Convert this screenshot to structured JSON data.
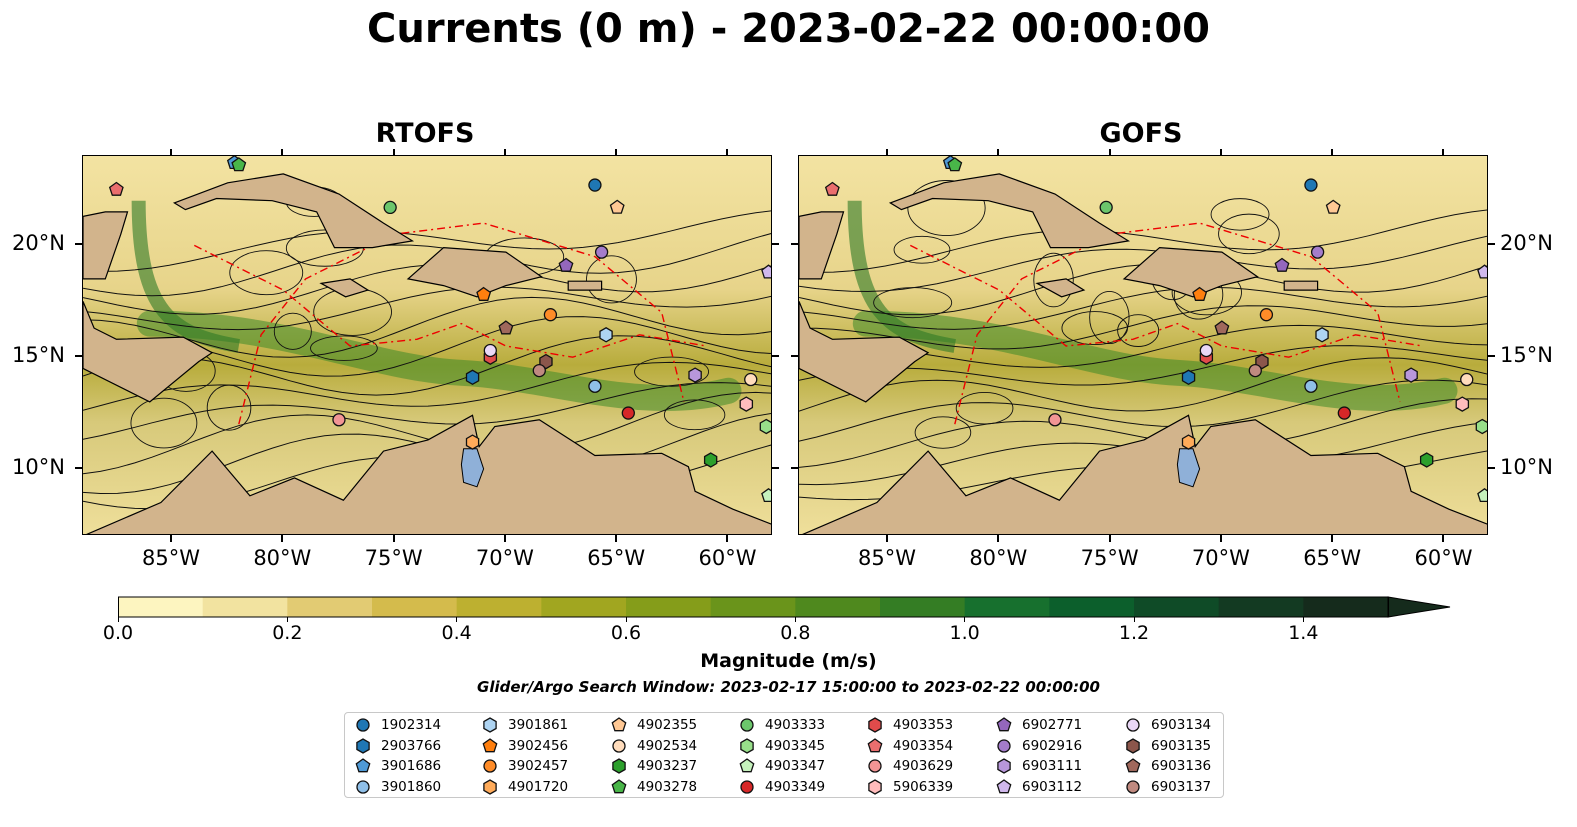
{
  "title": "Currents (0 m) - 2023-02-22 00:00:00",
  "panels": [
    {
      "title": "RTOFS"
    },
    {
      "title": "GOFS"
    }
  ],
  "lon_labels": [
    "85°W",
    "80°W",
    "75°W",
    "70°W",
    "65°W",
    "60°W"
  ],
  "lat_labels": [
    "20°N",
    "15°N",
    "10°N"
  ],
  "map_extent": {
    "lon": [
      -89,
      -58
    ],
    "lat": [
      7,
      24
    ]
  },
  "colorbar": {
    "title": "Magnitude (m/s)",
    "ticks": [
      "0.0",
      "0.2",
      "0.4",
      "0.6",
      "0.8",
      "1.0",
      "1.2",
      "1.4"
    ],
    "range": [
      0,
      1.5
    ],
    "colors": [
      "#fdf5c0",
      "#f2e3a0",
      "#e2cb73",
      "#d4bb4c",
      "#bdb030",
      "#a1a620",
      "#859d1a",
      "#6a941b",
      "#4f891e",
      "#347d24",
      "#17702e",
      "#0c5f2c",
      "#0f4b27",
      "#133a22",
      "#152b1c"
    ],
    "extend": "max"
  },
  "search_window": "Glider/Argo Search Window: 2023-02-17 15:00:00 to 2023-02-22 00:00:00",
  "legend": [
    {
      "id": "1902314",
      "marker": "circle",
      "color": "#1f77b4"
    },
    {
      "id": "2903766",
      "marker": "hexagon",
      "color": "#1f77b4"
    },
    {
      "id": "3901686",
      "marker": "pentagon",
      "color": "#4f9ad6"
    },
    {
      "id": "3901860",
      "marker": "circle",
      "color": "#8fbfe8"
    },
    {
      "id": "3901861",
      "marker": "hexagon",
      "color": "#aed4f2"
    },
    {
      "id": "3902456",
      "marker": "pentagon",
      "color": "#ff7f0e"
    },
    {
      "id": "3902457",
      "marker": "circle",
      "color": "#ff8c28"
    },
    {
      "id": "4901720",
      "marker": "hexagon",
      "color": "#ffab5a"
    },
    {
      "id": "4902355",
      "marker": "pentagon",
      "color": "#ffc894"
    },
    {
      "id": "4902534",
      "marker": "circle",
      "color": "#ffdcbc"
    },
    {
      "id": "4903237",
      "marker": "hexagon",
      "color": "#2ca02c"
    },
    {
      "id": "4903278",
      "marker": "pentagon",
      "color": "#49b649"
    },
    {
      "id": "4903333",
      "marker": "circle",
      "color": "#6cc66c"
    },
    {
      "id": "4903345",
      "marker": "hexagon",
      "color": "#98df8a"
    },
    {
      "id": "4903347",
      "marker": "pentagon",
      "color": "#c6f2bd"
    },
    {
      "id": "4903349",
      "marker": "circle",
      "color": "#d62728"
    },
    {
      "id": "4903353",
      "marker": "hexagon",
      "color": "#e04b4b"
    },
    {
      "id": "4903354",
      "marker": "pentagon",
      "color": "#ea6e6e"
    },
    {
      "id": "4903629",
      "marker": "circle",
      "color": "#f29595"
    },
    {
      "id": "5906339",
      "marker": "hexagon",
      "color": "#ffbcbc"
    },
    {
      "id": "6902771",
      "marker": "pentagon",
      "color": "#9467bd"
    },
    {
      "id": "6902916",
      "marker": "circle",
      "color": "#a47ccb"
    },
    {
      "id": "6903111",
      "marker": "hexagon",
      "color": "#b897db"
    },
    {
      "id": "6903112",
      "marker": "pentagon",
      "color": "#d0b8ec"
    },
    {
      "id": "6903134",
      "marker": "circle",
      "color": "#ead8f7"
    },
    {
      "id": "6903135",
      "marker": "hexagon",
      "color": "#8c564b"
    },
    {
      "id": "6903136",
      "marker": "pentagon",
      "color": "#a0685c"
    },
    {
      "id": "6903137",
      "marker": "circle",
      "color": "#c08a80"
    }
  ],
  "floats": [
    {
      "id": "1902314",
      "lon": -66.0,
      "lat": 22.7
    },
    {
      "id": "2903766",
      "lon": -71.5,
      "lat": 14.1
    },
    {
      "id": "3901686",
      "lon": -82.2,
      "lat": 23.7
    },
    {
      "id": "3901860",
      "lon": -66.0,
      "lat": 13.7
    },
    {
      "id": "3901861",
      "lon": -65.5,
      "lat": 16.0
    },
    {
      "id": "3902456",
      "lon": -71.0,
      "lat": 17.8
    },
    {
      "id": "3902457",
      "lon": -68.0,
      "lat": 16.9
    },
    {
      "id": "4901720",
      "lon": -71.5,
      "lat": 11.2
    },
    {
      "id": "4902355",
      "lon": -65.0,
      "lat": 21.7
    },
    {
      "id": "4902534",
      "lon": -59.0,
      "lat": 14.0
    },
    {
      "id": "4903237",
      "lon": -60.8,
      "lat": 10.4
    },
    {
      "id": "4903278",
      "lon": -82.0,
      "lat": 23.6
    },
    {
      "id": "4903333",
      "lon": -75.2,
      "lat": 21.7
    },
    {
      "id": "4903345",
      "lon": -58.3,
      "lat": 11.9
    },
    {
      "id": "4903347",
      "lon": -58.2,
      "lat": 8.8
    },
    {
      "id": "4903349",
      "lon": -64.5,
      "lat": 12.5
    },
    {
      "id": "4903353",
      "lon": -70.7,
      "lat": 15.0
    },
    {
      "id": "4903354",
      "lon": -87.5,
      "lat": 22.5
    },
    {
      "id": "4903629",
      "lon": -77.5,
      "lat": 12.2
    },
    {
      "id": "5906339",
      "lon": -59.2,
      "lat": 12.9
    },
    {
      "id": "6902771",
      "lon": -67.3,
      "lat": 19.1
    },
    {
      "id": "6902916",
      "lon": -65.7,
      "lat": 19.7
    },
    {
      "id": "6903111",
      "lon": -61.5,
      "lat": 14.2
    },
    {
      "id": "6903112",
      "lon": -58.2,
      "lat": 18.8
    },
    {
      "id": "6903134",
      "lon": -70.7,
      "lat": 15.3
    },
    {
      "id": "6903135",
      "lon": -68.2,
      "lat": 14.8
    },
    {
      "id": "6903136",
      "lon": -70.0,
      "lat": 16.3
    },
    {
      "id": "6903137",
      "lon": -68.5,
      "lat": 14.4
    }
  ]
}
